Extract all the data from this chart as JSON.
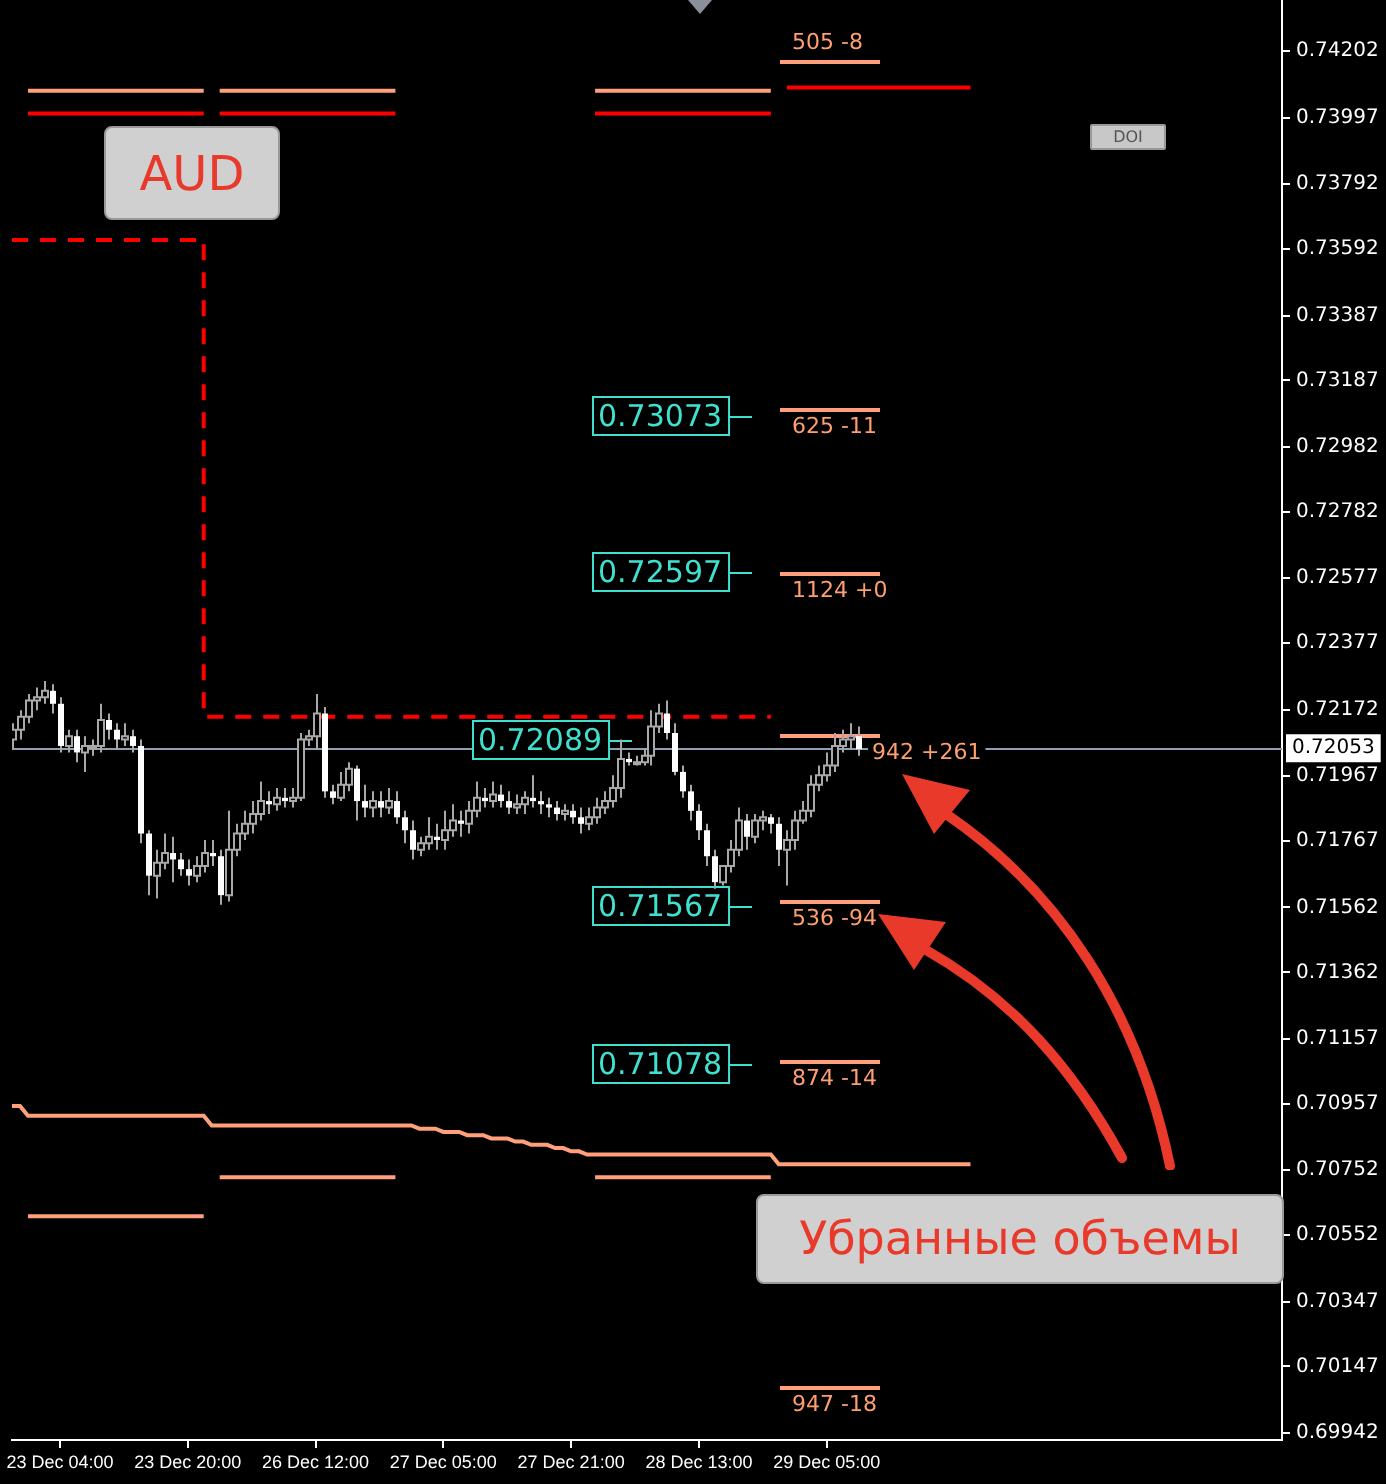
{
  "chart_data": {
    "type": "candlestick",
    "categories": [
      null,
      null,
      null,
      null,
      null,
      null,
      "23 Dec 04:00",
      null,
      null,
      null,
      null,
      null,
      null,
      null,
      null,
      null,
      null,
      null,
      null,
      null,
      null,
      null,
      "23 Dec 20:00",
      null,
      null,
      null,
      null,
      null,
      null,
      null,
      null,
      null,
      null,
      null,
      null,
      null,
      null,
      null,
      "26 Dec 12:00",
      null,
      null,
      null,
      null,
      null,
      null,
      null,
      null,
      null,
      null,
      null,
      null,
      null,
      null,
      null,
      "27 Dec 05:00",
      null,
      null,
      null,
      null,
      null,
      null,
      null,
      null,
      null,
      null,
      null,
      null,
      null,
      null,
      null,
      "27 Dec 21:00",
      null,
      null,
      null,
      null,
      null,
      null,
      null,
      null,
      null,
      null,
      null,
      null,
      null,
      null,
      null,
      "28 Dec 13:00",
      null,
      null,
      null,
      null,
      null,
      null,
      null,
      null,
      null,
      null,
      null,
      null,
      null,
      null,
      null,
      "29 Dec 05:00",
      null,
      null,
      null,
      null,
      null,
      null,
      null,
      null,
      null,
      null,
      null,
      null,
      null,
      null,
      null,
      null,
      null,
      null,
      null,
      null,
      null,
      null,
      null,
      null,
      null,
      null,
      null,
      null,
      null,
      null,
      null,
      null,
      null,
      null,
      null,
      null,
      null,
      null,
      null,
      null,
      null,
      null,
      null,
      null,
      null,
      null,
      null,
      null,
      null,
      null,
      null,
      null,
      null,
      null,
      null,
      null,
      null
    ],
    "ohlc": [
      [
        0.7208,
        0.7213,
        0.7205,
        0.7211
      ],
      [
        0.7211,
        0.7217,
        0.7208,
        0.7215
      ],
      [
        0.7215,
        0.7222,
        0.7213,
        0.722
      ],
      [
        0.722,
        0.7224,
        0.7217,
        0.7221
      ],
      [
        0.7221,
        0.7226,
        0.7219,
        0.7223
      ],
      [
        0.7223,
        0.7225,
        0.7216,
        0.7219
      ],
      [
        0.7219,
        0.7221,
        0.7204,
        0.7206
      ],
      [
        0.7206,
        0.7211,
        0.7204,
        0.7209
      ],
      [
        0.7209,
        0.7211,
        0.7201,
        0.7204
      ],
      [
        0.7204,
        0.7209,
        0.7198,
        0.7206
      ],
      [
        0.7206,
        0.7208,
        0.7203,
        0.7206
      ],
      [
        0.7206,
        0.7219,
        0.7204,
        0.7214
      ],
      [
        0.7214,
        0.7216,
        0.7208,
        0.7211
      ],
      [
        0.7211,
        0.7213,
        0.7205,
        0.7208
      ],
      [
        0.7208,
        0.7213,
        0.7206,
        0.7209
      ],
      [
        0.7209,
        0.7211,
        0.7204,
        0.7206
      ],
      [
        0.7206,
        0.7208,
        0.7176,
        0.7179
      ],
      [
        0.7179,
        0.718,
        0.716,
        0.7166
      ],
      [
        0.7166,
        0.7174,
        0.7159,
        0.717
      ],
      [
        0.717,
        0.7179,
        0.7168,
        0.7173
      ],
      [
        0.7173,
        0.7178,
        0.7164,
        0.7171
      ],
      [
        0.7171,
        0.7173,
        0.7166,
        0.7168
      ],
      [
        0.7168,
        0.7171,
        0.7163,
        0.7166
      ],
      [
        0.7166,
        0.7172,
        0.7164,
        0.7169
      ],
      [
        0.7169,
        0.7177,
        0.7167,
        0.7173
      ],
      [
        0.7173,
        0.7177,
        0.7169,
        0.7172
      ],
      [
        0.7172,
        0.7174,
        0.7157,
        0.716
      ],
      [
        0.716,
        0.7186,
        0.7158,
        0.7174
      ],
      [
        0.7174,
        0.7182,
        0.7172,
        0.7179
      ],
      [
        0.7179,
        0.7186,
        0.7177,
        0.7182
      ],
      [
        0.7182,
        0.7189,
        0.7179,
        0.7185
      ],
      [
        0.7185,
        0.7195,
        0.7183,
        0.7189
      ],
      [
        0.7189,
        0.7192,
        0.7185,
        0.7188
      ],
      [
        0.7188,
        0.7193,
        0.7186,
        0.719
      ],
      [
        0.719,
        0.7193,
        0.7187,
        0.7189
      ],
      [
        0.7189,
        0.7193,
        0.7187,
        0.719
      ],
      [
        0.719,
        0.721,
        0.7189,
        0.7208
      ],
      [
        0.7208,
        0.7211,
        0.7206,
        0.7209
      ],
      [
        0.7209,
        0.7222,
        0.7205,
        0.7216
      ],
      [
        0.7216,
        0.7218,
        0.719,
        0.7192
      ],
      [
        0.7192,
        0.7194,
        0.7188,
        0.719
      ],
      [
        0.719,
        0.7198,
        0.7189,
        0.7194
      ],
      [
        0.7194,
        0.7201,
        0.7192,
        0.7199
      ],
      [
        0.7199,
        0.72,
        0.7183,
        0.7189
      ],
      [
        0.7189,
        0.7194,
        0.7184,
        0.7187
      ],
      [
        0.7187,
        0.7192,
        0.7184,
        0.7189
      ],
      [
        0.7189,
        0.7192,
        0.7184,
        0.7187
      ],
      [
        0.7187,
        0.7193,
        0.7185,
        0.7189
      ],
      [
        0.7189,
        0.7192,
        0.7182,
        0.7184
      ],
      [
        0.7184,
        0.7186,
        0.7176,
        0.718
      ],
      [
        0.718,
        0.7183,
        0.7171,
        0.7174
      ],
      [
        0.7174,
        0.7178,
        0.7172,
        0.7176
      ],
      [
        0.7176,
        0.7184,
        0.7174,
        0.7178
      ],
      [
        0.7178,
        0.7182,
        0.7174,
        0.7177
      ],
      [
        0.7177,
        0.7186,
        0.7174,
        0.718
      ],
      [
        0.718,
        0.7188,
        0.7178,
        0.7183
      ],
      [
        0.7183,
        0.7186,
        0.7178,
        0.7182
      ],
      [
        0.7182,
        0.7189,
        0.7179,
        0.7186
      ],
      [
        0.7186,
        0.7195,
        0.7184,
        0.719
      ],
      [
        0.719,
        0.7193,
        0.7187,
        0.7189
      ],
      [
        0.7189,
        0.7195,
        0.7187,
        0.7191
      ],
      [
        0.7191,
        0.7194,
        0.7187,
        0.7189
      ],
      [
        0.7189,
        0.7192,
        0.7185,
        0.7187
      ],
      [
        0.7187,
        0.7191,
        0.7185,
        0.7188
      ],
      [
        0.7188,
        0.7192,
        0.7185,
        0.719
      ],
      [
        0.719,
        0.7197,
        0.7187,
        0.7189
      ],
      [
        0.7189,
        0.7192,
        0.7185,
        0.7188
      ],
      [
        0.7188,
        0.719,
        0.7184,
        0.7187
      ],
      [
        0.7187,
        0.7189,
        0.7183,
        0.7185
      ],
      [
        0.7185,
        0.7188,
        0.7183,
        0.7186
      ],
      [
        0.7186,
        0.7188,
        0.7182,
        0.7184
      ],
      [
        0.7184,
        0.7187,
        0.7179,
        0.7182
      ],
      [
        0.7182,
        0.7187,
        0.718,
        0.7184
      ],
      [
        0.7184,
        0.719,
        0.7182,
        0.7187
      ],
      [
        0.7187,
        0.7192,
        0.7185,
        0.7189
      ],
      [
        0.7189,
        0.7197,
        0.7187,
        0.7193
      ],
      [
        0.7193,
        0.7208,
        0.719,
        0.7202
      ],
      [
        0.7202,
        0.7204,
        0.72,
        0.7201
      ],
      [
        0.7201,
        0.7203,
        0.72,
        0.7201
      ],
      [
        0.7201,
        0.7205,
        0.72,
        0.7203
      ],
      [
        0.7203,
        0.7217,
        0.72,
        0.7212
      ],
      [
        0.7212,
        0.7219,
        0.721,
        0.7216
      ],
      [
        0.7216,
        0.722,
        0.7208,
        0.721
      ],
      [
        0.721,
        0.7213,
        0.7197,
        0.7198
      ],
      [
        0.7198,
        0.72,
        0.719,
        0.7192
      ],
      [
        0.7192,
        0.7194,
        0.7183,
        0.7186
      ],
      [
        0.7186,
        0.7188,
        0.7177,
        0.718
      ],
      [
        0.718,
        0.7182,
        0.7169,
        0.7172
      ],
      [
        0.7172,
        0.7174,
        0.7162,
        0.7164
      ],
      [
        0.7164,
        0.7169,
        0.7163,
        0.7169
      ],
      [
        0.7169,
        0.7177,
        0.7167,
        0.7174
      ],
      [
        0.7174,
        0.7187,
        0.7172,
        0.7183
      ],
      [
        0.7183,
        0.7185,
        0.7174,
        0.7178
      ],
      [
        0.7178,
        0.7185,
        0.7176,
        0.7183
      ],
      [
        0.7183,
        0.7186,
        0.718,
        0.7184
      ],
      [
        0.7184,
        0.7185,
        0.7179,
        0.7182
      ],
      [
        0.7182,
        0.7184,
        0.7169,
        0.7174
      ],
      [
        0.7174,
        0.718,
        0.7163,
        0.7177
      ],
      [
        0.7177,
        0.7186,
        0.7174,
        0.7183
      ],
      [
        0.7183,
        0.7189,
        0.7182,
        0.7186
      ],
      [
        0.7186,
        0.7197,
        0.7184,
        0.7194
      ],
      [
        0.7194,
        0.72,
        0.7192,
        0.7197
      ],
      [
        0.7197,
        0.7204,
        0.7195,
        0.72
      ],
      [
        0.72,
        0.721,
        0.7198,
        0.7206
      ],
      [
        0.7206,
        0.7211,
        0.7204,
        0.7208
      ],
      [
        0.7208,
        0.7213,
        0.7205,
        0.7209
      ],
      [
        0.7209,
        0.7212,
        0.7203,
        0.7205
      ],
      null,
      null,
      null,
      null,
      null,
      null,
      null,
      null,
      null,
      null,
      null,
      null,
      null,
      null,
      null,
      null,
      null,
      null,
      null,
      null,
      null,
      null,
      null,
      null,
      null,
      null,
      null,
      null,
      null,
      null,
      null,
      null,
      null,
      null,
      null,
      null,
      null,
      null,
      null,
      null,
      null,
      null,
      null,
      null,
      null,
      null,
      null,
      null,
      null,
      null,
      null,
      null,
      null
    ],
    "series": [
      {
        "type": "step",
        "color": "#ff0000",
        "line_style": "dashed",
        "values": [
          0.7362,
          0.7362,
          0.7362,
          0.7362,
          0.7362,
          0.7362,
          0.7362,
          0.7362,
          0.7362,
          0.7362,
          0.7362,
          0.7362,
          0.7362,
          0.7362,
          0.7362,
          0.7362,
          0.7362,
          0.7362,
          0.7362,
          0.7362,
          0.7362,
          0.7362,
          0.7362,
          0.7362,
          0.7362,
          0.7215,
          0.7215,
          0.7215,
          0.7215,
          0.7215,
          0.7215,
          0.7215,
          0.7215,
          0.7215,
          0.7215,
          0.7215,
          0.7215,
          0.7215,
          0.7215,
          0.7215,
          0.7215,
          0.7215,
          0.7215,
          0.7215,
          0.7215,
          0.7215,
          0.7215,
          0.7215,
          0.7215,
          0.7215,
          0.7215,
          0.7215,
          0.7215,
          0.7215,
          0.7215,
          0.7215,
          0.7215,
          0.7215,
          0.7215,
          0.7215,
          0.7215,
          0.7215,
          0.7215,
          0.7215,
          0.7215,
          0.7215,
          0.7215,
          0.7215,
          0.7215,
          0.7215,
          0.7215,
          0.7215,
          0.7215,
          0.7215,
          0.7215,
          0.7215,
          0.7215,
          0.7215,
          0.7215,
          0.7215,
          0.7215,
          0.7215,
          0.7215,
          0.7215,
          0.7215,
          0.7215,
          0.7215,
          0.7215,
          0.7215,
          0.7215,
          0.7215,
          0.7215,
          0.7215,
          0.7215,
          0.7215,
          0.7215,
          null,
          null,
          null,
          null,
          null,
          null,
          null,
          null,
          null,
          null,
          null,
          null,
          null,
          null,
          null,
          null,
          null,
          null,
          null,
          null,
          null,
          null,
          null,
          null,
          null,
          null,
          null,
          null,
          null,
          null,
          null,
          null,
          null,
          null,
          null,
          null,
          null,
          null,
          null,
          null,
          null,
          null,
          null,
          null,
          null,
          null,
          null,
          null,
          null,
          null,
          null,
          null,
          null,
          null,
          null,
          null,
          null,
          null,
          null,
          null,
          null,
          null,
          null,
          null
        ]
      },
      {
        "type": "line",
        "color": "#ffa07a",
        "values": [
          0.7095,
          0.7095,
          0.7092,
          0.7092,
          0.7092,
          0.7092,
          0.7092,
          0.7092,
          0.7092,
          0.7092,
          0.7092,
          0.7092,
          0.7092,
          0.7092,
          0.7092,
          0.7092,
          0.7092,
          0.7092,
          0.7092,
          0.7092,
          0.7092,
          0.7092,
          0.7092,
          0.7092,
          0.7092,
          0.7089,
          0.7089,
          0.7089,
          0.7089,
          0.7089,
          0.7089,
          0.7089,
          0.7089,
          0.7089,
          0.7089,
          0.7089,
          0.7089,
          0.7089,
          0.7089,
          0.7089,
          0.7089,
          0.7089,
          0.7089,
          0.7089,
          0.7089,
          0.7089,
          0.7089,
          0.7089,
          0.7089,
          0.7089,
          0.7089,
          0.7088,
          0.7088,
          0.7088,
          0.7087,
          0.7087,
          0.7087,
          0.7086,
          0.7086,
          0.7086,
          0.7085,
          0.7085,
          0.7085,
          0.7084,
          0.7084,
          0.7083,
          0.7083,
          0.7083,
          0.7082,
          0.7082,
          0.7081,
          0.7081,
          0.708,
          0.708,
          0.708,
          0.708,
          0.708,
          0.708,
          0.708,
          0.708,
          0.708,
          0.708,
          0.708,
          0.708,
          0.708,
          0.708,
          0.708,
          0.708,
          0.708,
          0.708,
          0.708,
          0.708,
          0.708,
          0.708,
          0.708,
          0.708,
          0.7077,
          0.7077,
          0.7077,
          0.7077,
          0.7077,
          0.7077,
          0.7077,
          0.7077,
          0.7077,
          0.7077,
          0.7077,
          0.7077,
          0.7077,
          0.7077,
          0.7077,
          0.7077,
          0.7077,
          0.7077,
          0.7077,
          0.7077,
          0.7077,
          0.7077,
          0.7077,
          0.7077,
          0.7077,
          null,
          null,
          null,
          null,
          null,
          null,
          null,
          null,
          null,
          null,
          null,
          null,
          null,
          null,
          null,
          null,
          null,
          null,
          null,
          null,
          null,
          null,
          null,
          null,
          null,
          null,
          null,
          null,
          null,
          null,
          null,
          null,
          null,
          null,
          null,
          null,
          null,
          null,
          null
        ]
      },
      {
        "type": "line",
        "color": "#ff0000",
        "values": [
          null,
          null,
          0.7401,
          0.7401,
          0.7401,
          0.7401,
          0.7401,
          0.7401,
          0.7401,
          0.7401,
          0.7401,
          0.7401,
          0.7401,
          0.7401,
          0.7401,
          0.7401,
          0.7401,
          0.7401,
          0.7401,
          0.7401,
          0.7401,
          0.7401,
          0.7401,
          0.7401,
          0.7401,
          null,
          0.7401,
          0.7401,
          0.7401,
          0.7401,
          0.7401,
          0.7401,
          0.7401,
          0.7401,
          0.7401,
          0.7401,
          0.7401,
          0.7401,
          0.7401,
          0.7401,
          0.7401,
          0.7401,
          0.7401,
          0.7401,
          0.7401,
          0.7401,
          0.7401,
          0.7401,
          0.7401,
          null,
          null,
          null,
          null,
          null,
          null,
          null,
          null,
          null,
          null,
          null,
          null,
          null,
          null,
          null,
          null,
          null,
          null,
          null,
          null,
          null,
          null,
          null,
          null,
          0.7401,
          0.7401,
          0.7401,
          0.7401,
          0.7401,
          0.7401,
          0.7401,
          0.7401,
          0.7401,
          0.7401,
          0.7401,
          0.7401,
          0.7401,
          0.7401,
          0.7401,
          0.7401,
          0.7401,
          0.7401,
          0.7401,
          0.7401,
          0.7401,
          0.7401,
          0.7401,
          null,
          null,
          null,
          null,
          null,
          null,
          null,
          null,
          null,
          null,
          null,
          null,
          null,
          null,
          null,
          null,
          null,
          null,
          null,
          null,
          null,
          null,
          null,
          null,
          null,
          null,
          null,
          null,
          null,
          null,
          null,
          null,
          null,
          null,
          null,
          null,
          null,
          null,
          null,
          null,
          null,
          null,
          null,
          null,
          null,
          null,
          null,
          null,
          null,
          null,
          null,
          null,
          null,
          null,
          null,
          null,
          null,
          null,
          null,
          null,
          null,
          null,
          null,
          null
        ]
      },
      {
        "type": "line",
        "color": "#ffa07a",
        "values": [
          null,
          null,
          0.7408,
          0.7408,
          0.7408,
          0.7408,
          0.7408,
          0.7408,
          0.7408,
          0.7408,
          0.7408,
          0.7408,
          0.7408,
          0.7408,
          0.7408,
          0.7408,
          0.7408,
          0.7408,
          0.7408,
          0.7408,
          0.7408,
          0.7408,
          0.7408,
          0.7408,
          0.7408,
          null,
          0.7408,
          0.7408,
          0.7408,
          0.7408,
          0.7408,
          0.7408,
          0.7408,
          0.7408,
          0.7408,
          0.7408,
          0.7408,
          0.7408,
          0.7408,
          0.7408,
          0.7408,
          0.7408,
          0.7408,
          0.7408,
          0.7408,
          0.7408,
          0.7408,
          0.7408,
          0.7408,
          null,
          null,
          null,
          null,
          null,
          null,
          null,
          null,
          null,
          null,
          null,
          null,
          null,
          null,
          null,
          null,
          null,
          null,
          null,
          null,
          null,
          null,
          null,
          null,
          0.7408,
          0.7408,
          0.7408,
          0.7408,
          0.7408,
          0.7408,
          0.7408,
          0.7408,
          0.7408,
          0.7408,
          0.7408,
          0.7408,
          0.7408,
          0.7408,
          0.7408,
          0.7408,
          0.7408,
          0.7408,
          0.7408,
          0.7408,
          0.7408,
          0.7408,
          0.7408,
          null,
          null,
          null,
          null,
          null,
          null,
          null,
          null,
          null,
          null,
          null,
          null,
          null,
          null,
          null,
          null,
          null,
          null,
          null,
          null,
          null,
          null,
          null,
          null,
          null,
          null,
          null,
          null,
          null,
          null,
          null,
          null,
          null,
          null,
          null,
          null,
          null,
          null,
          null,
          null,
          null,
          null,
          null,
          null,
          null,
          null,
          null,
          null,
          null,
          null,
          null,
          null,
          null,
          null,
          null,
          null,
          null,
          null,
          null,
          null,
          null,
          null,
          null,
          null
        ]
      },
      {
        "type": "line",
        "color": "#ffa07a",
        "values": [
          null,
          null,
          0.7061,
          0.7061,
          0.7061,
          0.7061,
          0.7061,
          0.7061,
          0.7061,
          0.7061,
          0.7061,
          0.7061,
          0.7061,
          0.7061,
          0.7061,
          0.7061,
          0.7061,
          0.7061,
          0.7061,
          0.7061,
          0.7061,
          0.7061,
          0.7061,
          0.7061,
          0.7061,
          null,
          0.7073,
          0.7073,
          0.7073,
          0.7073,
          0.7073,
          0.7073,
          0.7073,
          0.7073,
          0.7073,
          0.7073,
          0.7073,
          0.7073,
          0.7073,
          0.7073,
          0.7073,
          0.7073,
          0.7073,
          0.7073,
          0.7073,
          0.7073,
          0.7073,
          0.7073,
          0.7073,
          null,
          null,
          null,
          null,
          null,
          null,
          null,
          null,
          null,
          null,
          null,
          null,
          null,
          null,
          null,
          null,
          null,
          null,
          null,
          null,
          null,
          null,
          null,
          null,
          0.7073,
          0.7073,
          0.7073,
          0.7073,
          0.7073,
          0.7073,
          0.7073,
          0.7073,
          0.7073,
          0.7073,
          0.7073,
          0.7073,
          0.7073,
          0.7073,
          0.7073,
          0.7073,
          0.7073,
          0.7073,
          0.7073,
          0.7073,
          0.7073,
          0.7073,
          0.7073,
          null,
          null,
          null,
          null,
          null,
          null,
          null,
          null,
          null,
          null,
          null,
          null,
          null,
          null,
          null,
          null,
          null,
          null,
          null,
          null,
          null,
          null,
          null,
          null,
          null,
          null,
          null,
          null,
          null,
          null,
          null,
          null,
          null,
          null,
          null,
          null,
          null,
          null,
          null,
          null,
          null,
          null,
          null,
          null,
          null,
          null,
          null,
          null,
          null,
          null,
          null,
          null,
          null,
          null,
          null,
          null,
          null,
          null,
          null,
          null,
          null,
          null,
          null,
          null
        ]
      },
      {
        "type": "line",
        "color": "#ff0000",
        "values": [
          null,
          null,
          null,
          null,
          null,
          null,
          null,
          null,
          null,
          null,
          null,
          null,
          null,
          null,
          null,
          null,
          null,
          null,
          null,
          null,
          null,
          null,
          null,
          null,
          null,
          null,
          null,
          null,
          null,
          null,
          null,
          null,
          null,
          null,
          null,
          null,
          null,
          null,
          null,
          null,
          null,
          null,
          null,
          null,
          null,
          null,
          null,
          null,
          null,
          null,
          null,
          null,
          null,
          null,
          null,
          null,
          null,
          null,
          null,
          null,
          null,
          null,
          null,
          null,
          null,
          null,
          null,
          null,
          null,
          null,
          null,
          null,
          null,
          null,
          null,
          null,
          null,
          null,
          null,
          null,
          null,
          null,
          null,
          null,
          null,
          null,
          null,
          null,
          null,
          null,
          null,
          null,
          null,
          null,
          null,
          null,
          null,
          0.7409,
          0.7409,
          0.7409,
          0.7409,
          0.7409,
          0.7409,
          0.7409,
          0.7409,
          0.7409,
          0.7409,
          0.7409,
          0.7409,
          0.7409,
          0.7409,
          0.7409,
          0.7409,
          0.7409,
          0.7409,
          0.7409,
          0.7409,
          0.7409,
          0.7409,
          0.7409,
          0.7409,
          null,
          null,
          null,
          null,
          null,
          null,
          null,
          null,
          null,
          null,
          null,
          null,
          null,
          null,
          null,
          null,
          null,
          null,
          null,
          null,
          null,
          null,
          null,
          null,
          null,
          null,
          null,
          null,
          null,
          null,
          null,
          null,
          null,
          null,
          null,
          null,
          null,
          null,
          null
        ]
      }
    ],
    "ylim": [
      0.6992,
      0.7436
    ],
    "yticks": [
      0.69942,
      0.70147,
      0.70347,
      0.70552,
      0.70752,
      0.70957,
      0.71157,
      0.71362,
      0.71562,
      0.71767,
      0.71967,
      0.72172,
      0.72377,
      0.72577,
      0.72782,
      0.72982,
      0.73187,
      0.73387,
      0.73592,
      0.73792,
      0.73997,
      0.74202
    ],
    "ref_lines": [
      {
        "axis": "y",
        "value": 0.72053,
        "label": "0.72053",
        "color": "#8fa0b3"
      }
    ],
    "annotations": [
      "AUD",
      "Убранные объемы",
      "DOI",
      "0.73073",
      "0.72597",
      "0.72089",
      "0.71567",
      "0.71078",
      "505 -8",
      "625 -11",
      "1124 +0",
      "942 +261",
      "536 -94",
      "874 -14",
      "947 -18"
    ],
    "grid": false,
    "legend": false,
    "marker": "none"
  }
}
